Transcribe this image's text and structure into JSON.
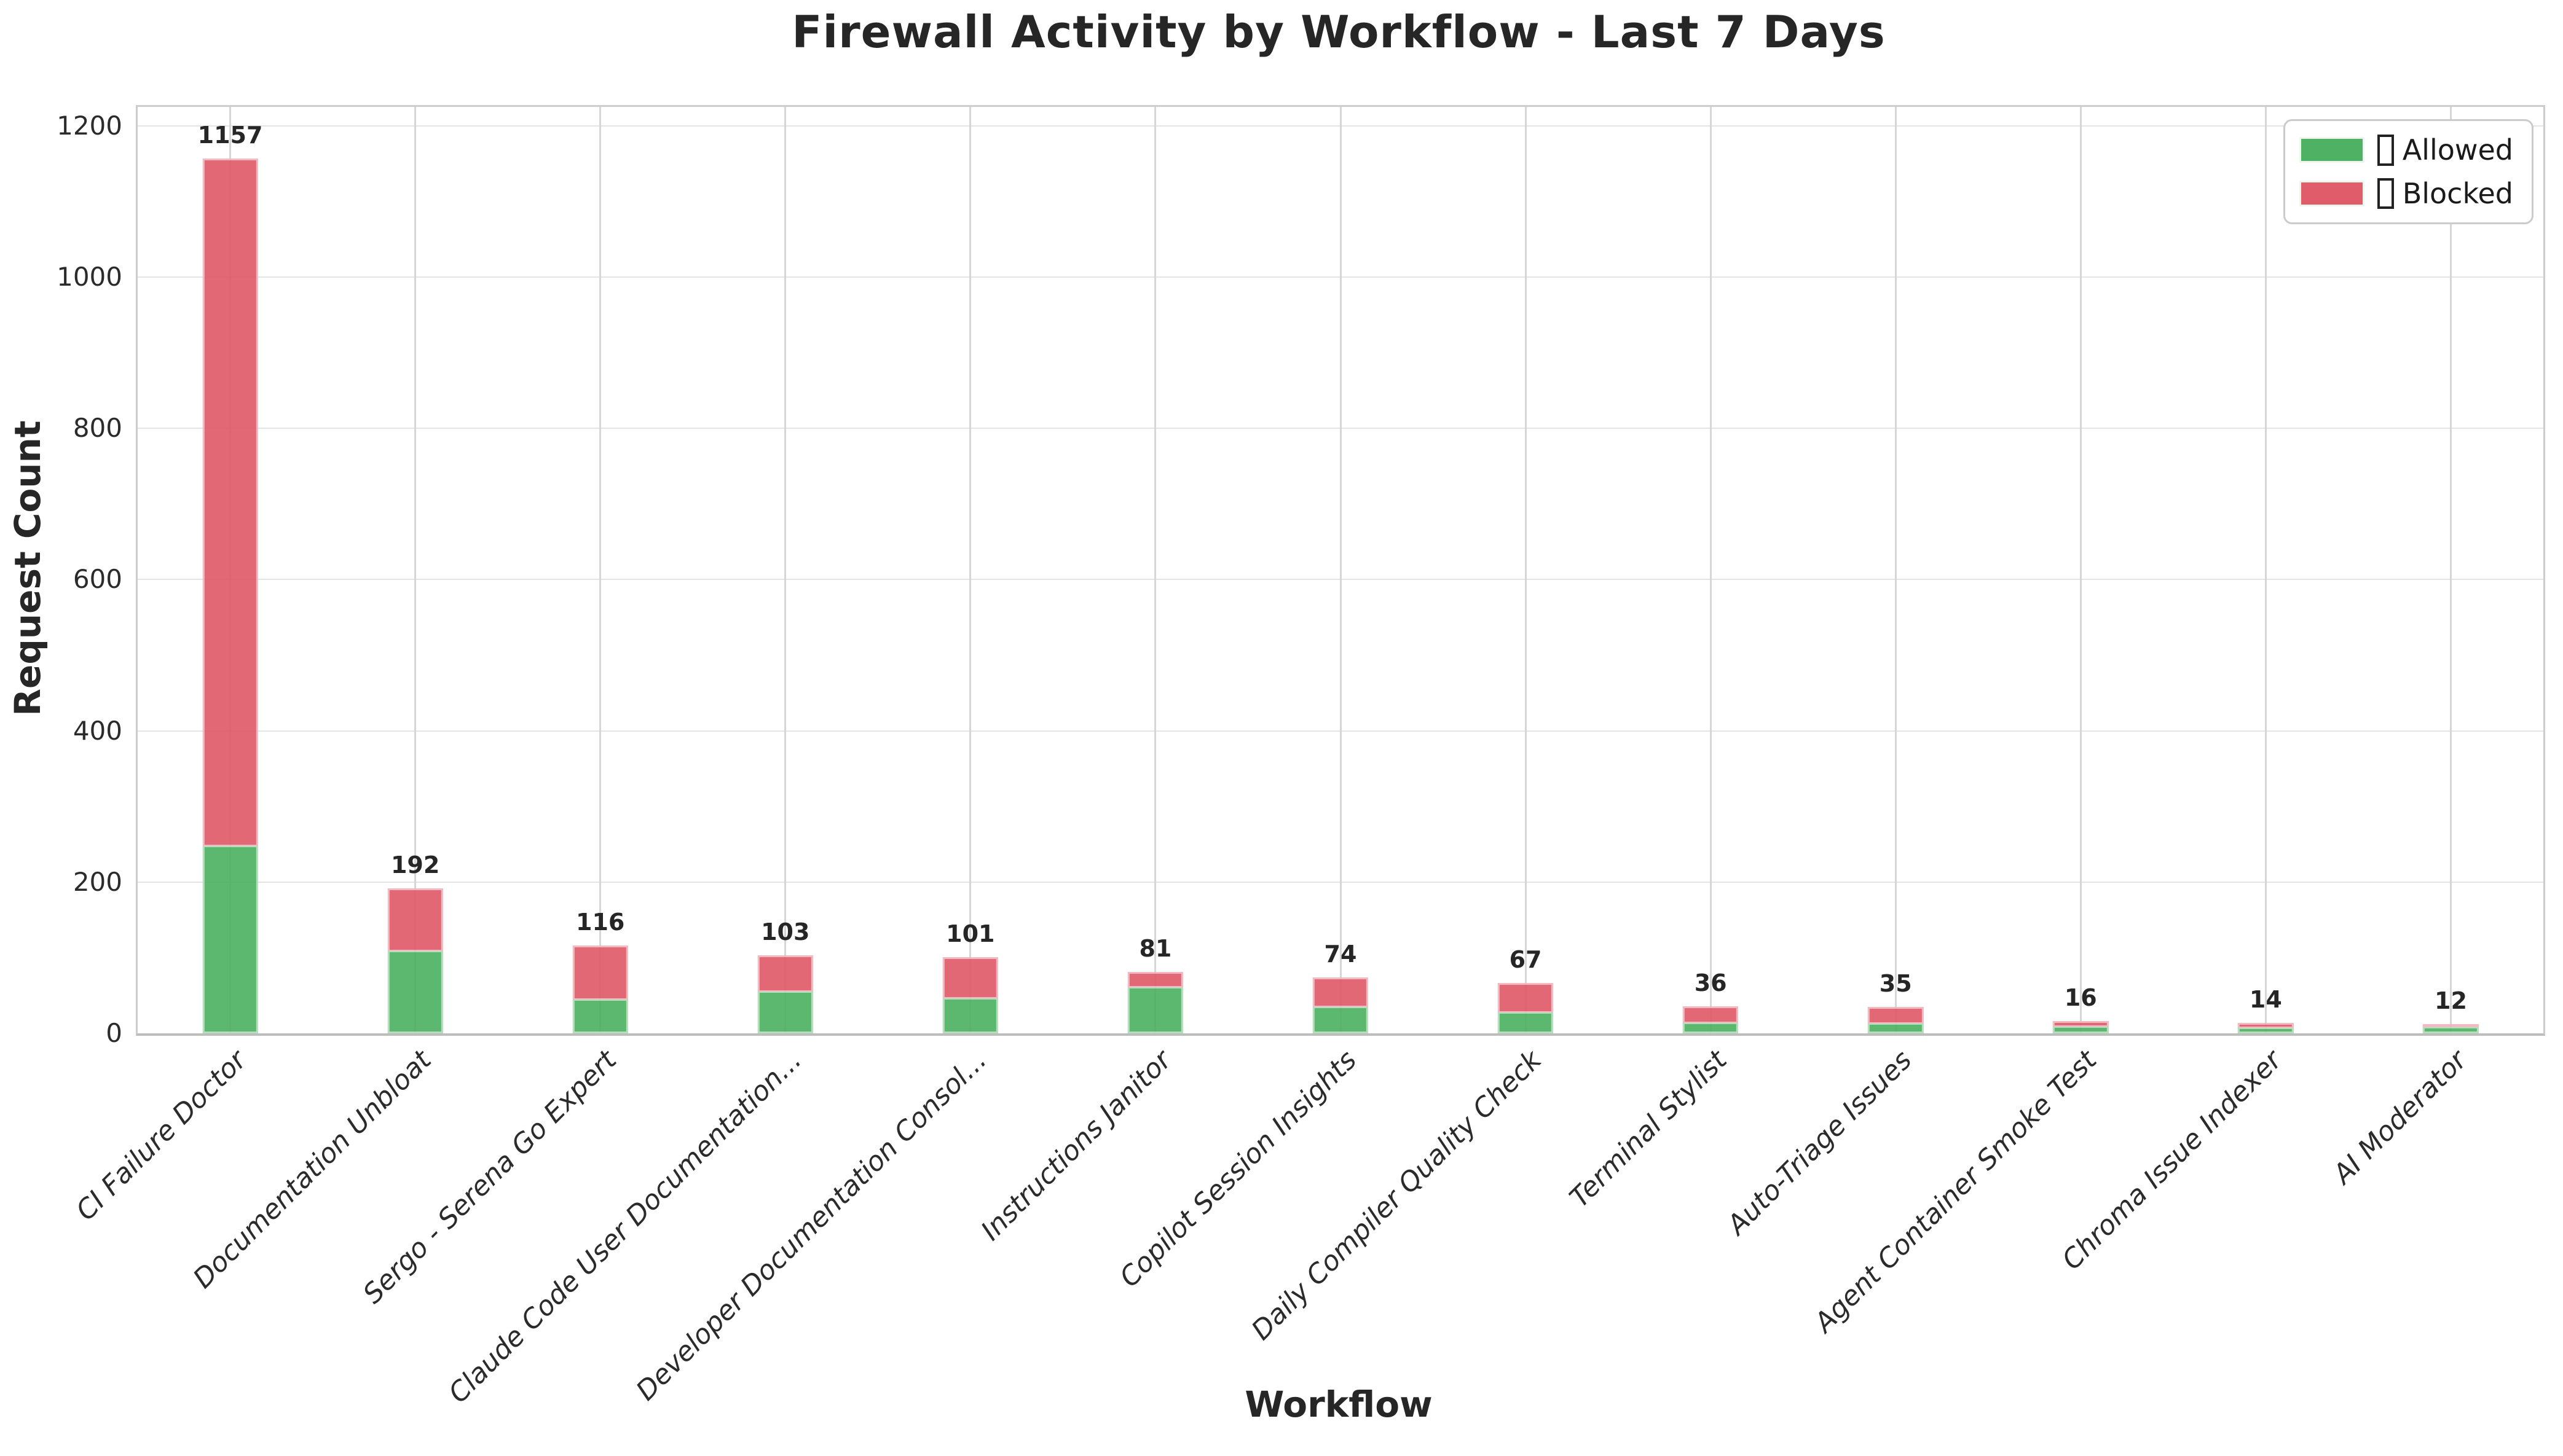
{
  "figure": {
    "title": "Firewall Activity by Workflow - Last 7 Days",
    "background_color": "#ffffff"
  },
  "axes": {
    "xlabel": "Workflow",
    "ylabel": "Request Count"
  },
  "legend": {
    "position": "upper-right",
    "items": [
      {
        "glyph": "missing-emoji-box",
        "label": "Allowed",
        "color": "#4fb163"
      },
      {
        "glyph": "missing-emoji-box",
        "label": "Blocked",
        "color": "#e05c6b"
      }
    ]
  },
  "chart_data": {
    "type": "bar",
    "stacked": true,
    "title": "Firewall Activity by Workflow - Last 7 Days",
    "xlabel": "Workflow",
    "ylabel": "Request Count",
    "categories": [
      "CI Failure Doctor",
      "Documentation Unbloat",
      "Sergo - Serena Go Expert",
      "Claude Code User Documentation...",
      "Developer Documentation Consol...",
      "Instructions Janitor",
      "Copilot Session Insights",
      "Daily Compiler Quality Check",
      "Terminal Stylist",
      "Auto-Triage Issues",
      "Agent Container Smoke Test",
      "Chroma Issue Indexer",
      "AI Moderator"
    ],
    "series": [
      {
        "name": "Allowed",
        "color": "#4fb163",
        "values": [
          248,
          109,
          45,
          55,
          46,
          61,
          35,
          28,
          14,
          13,
          9,
          7,
          8
        ]
      },
      {
        "name": "Blocked",
        "color": "#e05c6b",
        "values": [
          909,
          83,
          71,
          48,
          55,
          20,
          39,
          39,
          22,
          22,
          7,
          7,
          4
        ]
      }
    ],
    "totals": [
      1157,
      192,
      116,
      103,
      101,
      81,
      74,
      67,
      36,
      35,
      16,
      14,
      12
    ],
    "ylim": [
      0,
      1225
    ],
    "yticks": [
      0,
      200,
      400,
      600,
      800,
      1000,
      1200
    ],
    "grid": true,
    "x_tick_rotation_deg": 45,
    "x_tick_style": "italic",
    "bar_width_fraction": 0.3,
    "legend_position": "upper right"
  }
}
